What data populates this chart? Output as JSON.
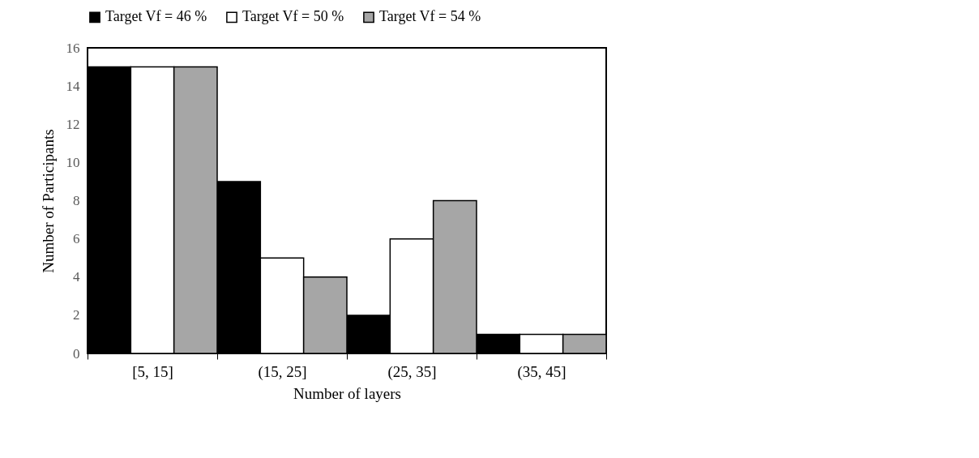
{
  "chart_data": {
    "type": "bar",
    "xlabel": "Number of layers",
    "ylabel": "Number of Participants",
    "categories": [
      "[5, 15]",
      "(15, 25]",
      "(25, 35]",
      "(35, 45]"
    ],
    "series": [
      {
        "name": "Target Vf = 46 %",
        "color": "#000000",
        "values": [
          15,
          9,
          2,
          1
        ]
      },
      {
        "name": "Target Vf = 50 %",
        "color": "#ffffff",
        "values": [
          15,
          5,
          6,
          1
        ]
      },
      {
        "name": "Target Vf = 54 %",
        "color": "#a6a6a6",
        "values": [
          15,
          4,
          8,
          1
        ]
      }
    ],
    "ylim": [
      0,
      16
    ],
    "yticks": [
      0,
      2,
      4,
      6,
      8,
      10,
      12,
      14,
      16
    ],
    "grid": false,
    "legend": "top"
  }
}
